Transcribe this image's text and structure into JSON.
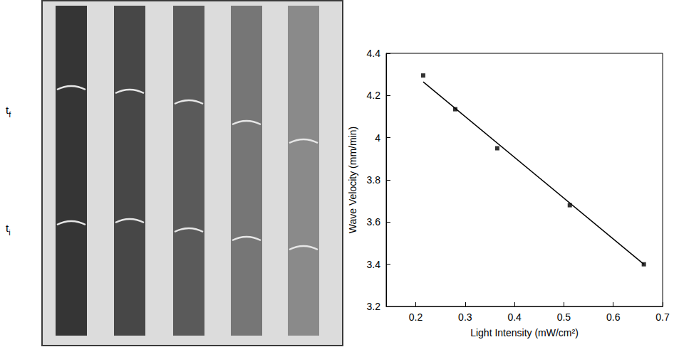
{
  "photo": {
    "strip_colors": [
      "#353535",
      "#474747",
      "#5a5a5a",
      "#767676",
      "#8a8a8a"
    ],
    "labels": [
      {
        "text": "t",
        "subscript": "f"
      },
      {
        "text": "t",
        "subscript": "i"
      }
    ]
  },
  "chart_data": {
    "type": "scatter",
    "x_label": "Light Intensity (mW/cm²)",
    "y_label": "Wave Velocity (mm/min)",
    "series": [
      {
        "type": "scatter",
        "marker": "square",
        "color": "#000000",
        "x": [
          0.215,
          0.28,
          0.365,
          0.512,
          0.662
        ],
        "values": [
          4.295,
          4.135,
          3.95,
          3.68,
          3.4
        ]
      },
      {
        "type": "line",
        "line_style": "solid",
        "color": "#000000",
        "x": [
          0.215,
          0.662
        ],
        "values": [
          4.265,
          3.4
        ]
      }
    ],
    "xlim": [
      0.14,
      0.7
    ],
    "xticks": [
      0.2,
      0.3,
      0.4,
      0.5,
      0.6,
      0.7
    ],
    "ylim": [
      3.2,
      4.4
    ],
    "yticks": [
      3.2,
      3.4,
      3.6,
      3.8,
      4,
      4.2,
      4.4
    ],
    "grid": false
  }
}
